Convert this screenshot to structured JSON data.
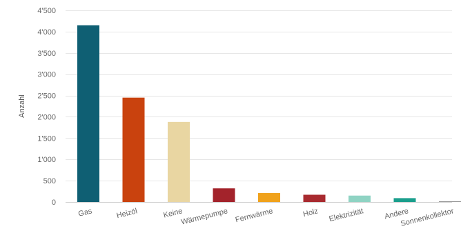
{
  "chart_data": {
    "type": "bar",
    "ylabel": "Anzahl",
    "ylim": [
      0,
      4500
    ],
    "grid": true,
    "yticks": [
      0,
      500,
      1000,
      1500,
      2000,
      2500,
      3000,
      3500,
      4000,
      4500
    ],
    "ytick_labels": [
      "0",
      "500",
      "1'000",
      "1'500",
      "2'000",
      "2'500",
      "3'000",
      "3'500",
      "4'000",
      "4'500"
    ],
    "categories": [
      "Gas",
      "Heizöl",
      "Keine",
      "Wärmepumpe",
      "Fernwärme",
      "Holz",
      "Elektrizität",
      "Andere",
      "Sonnenkollektor"
    ],
    "values": [
      4150,
      2450,
      1880,
      320,
      210,
      170,
      150,
      90,
      5
    ],
    "colors": [
      "#0f5f73",
      "#c9420e",
      "#e9d6a2",
      "#a3232b",
      "#f0a21c",
      "#a82a2f",
      "#8fd3c3",
      "#1a9e8c",
      "#7a7a7a"
    ]
  }
}
